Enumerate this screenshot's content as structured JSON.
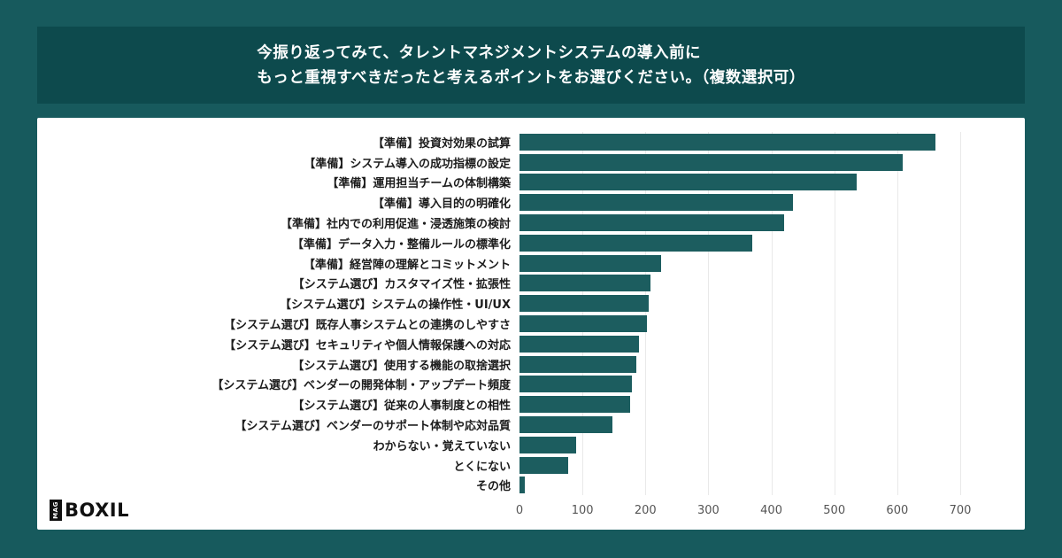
{
  "header": {
    "title_line1": "今振り返ってみて、タレントマネジメントシステムの導入前に",
    "title_line2": "もっと重視すべきだったと考えるポイントをお選びください。（複数選択可）"
  },
  "logo": {
    "mag": "MAG",
    "boxil": "BOXIL"
  },
  "colors": {
    "page_background": "#175a5d",
    "header_background": "#0d4a4d",
    "card_background": "#ffffff",
    "bar_color": "#1c5d5f",
    "gridline_color": "#e9e9e9",
    "label_color": "#1c1c1c",
    "tick_color": "#555555"
  },
  "chart_data": {
    "type": "bar",
    "orientation": "horizontal",
    "title": "今振り返ってみて、タレントマネジメントシステムの導入前にもっと重視すべきだったと考えるポイントをお選びください。（複数選択可）",
    "categories": [
      "【準備】投資対効果の試算",
      "【準備】システム導入の成功指標の設定",
      "【準備】運用担当チームの体制構築",
      "【準備】導入目的の明確化",
      "【準備】社内での利用促進・浸透施策の検討",
      "【準備】データ入力・整備ルールの標準化",
      "【準備】経営陣の理解とコミットメント",
      "【システム選び】カスタマイズ性・拡張性",
      "【システム選び】システムの操作性・UI/UX",
      "【システム選び】既存人事システムとの連携のしやすさ",
      "【システム選び】セキュリティや個人情報保護への対応",
      "【システム選び】使用する機能の取捨選択",
      "【システム選び】ベンダーの開発体制・アップデート頻度",
      "【システム選び】従来の人事制度との相性",
      "【システム選び】ベンダーのサポート体制や応対品質",
      "わからない・覚えていない",
      "とくにない",
      "その他"
    ],
    "values": [
      660,
      608,
      535,
      435,
      420,
      370,
      225,
      208,
      205,
      203,
      190,
      186,
      179,
      176,
      148,
      90,
      78,
      8
    ],
    "xlabel": "",
    "ylabel": "",
    "xlim": [
      0,
      700
    ],
    "xticks": [
      0,
      100,
      200,
      300,
      400,
      500,
      600,
      700
    ],
    "bar_color": "#1c5d5f",
    "grid": true,
    "legend": false
  }
}
